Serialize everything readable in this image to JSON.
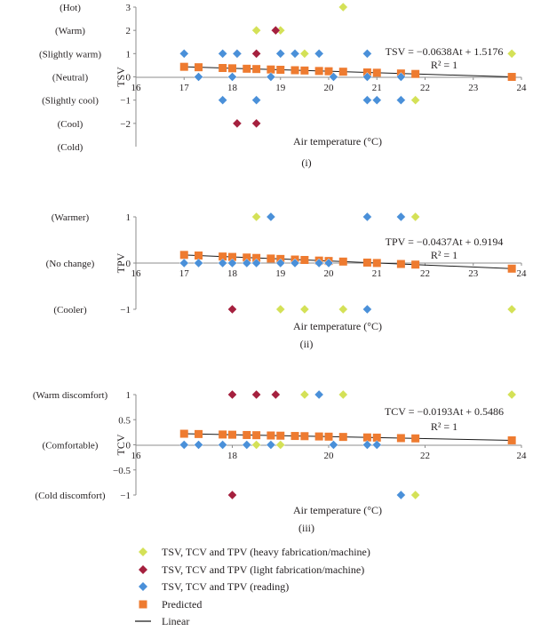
{
  "colors": {
    "heavy": "#d4e157",
    "light": "#a5203e",
    "reading": "#4a90d9",
    "predicted": "#ee7b30",
    "linear": "#1a1a1a",
    "axis": "#8c8c8c",
    "text": "#231f20"
  },
  "legend": [
    {
      "key": "heavy",
      "marker": "diamond",
      "label": "TSV, TCV and TPV (heavy fabrication/machine)"
    },
    {
      "key": "light",
      "marker": "diamond",
      "label": "TSV, TCV and TPV (light fabrication/machine)"
    },
    {
      "key": "reading",
      "marker": "diamond",
      "label": "TSV, TCV and TPV (reading)"
    },
    {
      "key": "predicted",
      "marker": "square",
      "label": "Predicted"
    },
    {
      "key": "linear",
      "marker": "line",
      "label": "Linear"
    }
  ],
  "chart_data": [
    {
      "id": "i",
      "type": "scatter",
      "caption": "(i)",
      "xlabel": "Air temperature (°C)",
      "ylabel": "TSV",
      "xlim": [
        16,
        24
      ],
      "ylim": [
        -3,
        3
      ],
      "xticks": [
        16,
        17,
        18,
        19,
        20,
        21,
        22,
        23,
        24
      ],
      "yticks": [
        3,
        2,
        1,
        0,
        -1,
        -2
      ],
      "category_labels": [
        {
          "y": 3,
          "text": "(Hot)"
        },
        {
          "y": 2,
          "text": "(Warm)"
        },
        {
          "y": 1,
          "text": "(Slightly warm)"
        },
        {
          "y": 0,
          "text": "(Neutral)"
        },
        {
          "y": -1,
          "text": "(Slightly cool)"
        },
        {
          "y": -2,
          "text": "(Cool)"
        },
        {
          "y": -3,
          "text": "(Cold)"
        }
      ],
      "equation": "TSV = −0.0638At + 1.5176",
      "r2": "R² = 1",
      "series": [
        {
          "name": "TSV, TCV and TPV (heavy fabrication/machine)",
          "key": "heavy",
          "points": [
            [
              20.3,
              3
            ],
            [
              18.5,
              2
            ],
            [
              19.0,
              2
            ],
            [
              19.5,
              1
            ],
            [
              23.8,
              1
            ],
            [
              21.8,
              -1
            ]
          ]
        },
        {
          "name": "TSV, TCV and TPV (light fabrication/machine)",
          "key": "light",
          "points": [
            [
              18.9,
              2
            ],
            [
              18.1,
              1
            ],
            [
              18.5,
              1
            ],
            [
              18.1,
              -2
            ],
            [
              18.5,
              -2
            ]
          ]
        },
        {
          "name": "TSV, TCV and TPV (reading)",
          "key": "reading",
          "points": [
            [
              17.0,
              1
            ],
            [
              17.8,
              1
            ],
            [
              18.1,
              1
            ],
            [
              19.0,
              1
            ],
            [
              19.3,
              1
            ],
            [
              19.8,
              1
            ],
            [
              20.8,
              1
            ],
            [
              17.3,
              0
            ],
            [
              18.0,
              0
            ],
            [
              18.8,
              0
            ],
            [
              20.1,
              0
            ],
            [
              20.8,
              0
            ],
            [
              21.5,
              0
            ],
            [
              17.8,
              -1
            ],
            [
              18.5,
              -1
            ],
            [
              20.8,
              -1
            ],
            [
              21.0,
              -1
            ],
            [
              21.5,
              -1
            ]
          ]
        },
        {
          "name": "Predicted",
          "key": "predicted",
          "x": [
            17.0,
            17.3,
            17.8,
            18.0,
            18.3,
            18.5,
            18.8,
            19.0,
            19.3,
            19.5,
            19.8,
            20.0,
            20.3,
            20.8,
            21.0,
            21.5,
            21.8,
            23.8
          ]
        },
        {
          "name": "Linear",
          "key": "linear",
          "slope": -0.0638,
          "intercept": 1.5176
        }
      ]
    },
    {
      "id": "ii",
      "type": "scatter",
      "caption": "(ii)",
      "xlabel": "Air temperature (°C)",
      "ylabel": "TPV",
      "xlim": [
        16,
        24
      ],
      "ylim": [
        -1,
        1
      ],
      "xticks": [
        16,
        17,
        18,
        19,
        20,
        21,
        22,
        23,
        24
      ],
      "yticks": [
        1,
        0,
        -1
      ],
      "category_labels": [
        {
          "y": 1,
          "text": "(Warmer)"
        },
        {
          "y": 0,
          "text": "(No change)"
        },
        {
          "y": -1,
          "text": "(Cooler)"
        }
      ],
      "equation": "TPV = −0.0437At + 0.9194",
      "r2": "R² = 1",
      "series": [
        {
          "name": "TSV, TCV and TPV (heavy fabrication/machine)",
          "key": "heavy",
          "points": [
            [
              18.5,
              1
            ],
            [
              21.8,
              1
            ],
            [
              19.0,
              -1
            ],
            [
              19.5,
              -1
            ],
            [
              20.3,
              -1
            ],
            [
              23.8,
              -1
            ]
          ]
        },
        {
          "name": "TSV, TCV and TPV (light fabrication/machine)",
          "key": "light",
          "points": [
            [
              18.0,
              -1
            ]
          ]
        },
        {
          "name": "TSV, TCV and TPV (reading)",
          "key": "reading",
          "points": [
            [
              18.8,
              1
            ],
            [
              20.8,
              1
            ],
            [
              21.5,
              1
            ],
            [
              17.0,
              0
            ],
            [
              17.3,
              0
            ],
            [
              17.8,
              0
            ],
            [
              18.0,
              0
            ],
            [
              18.3,
              0
            ],
            [
              18.5,
              0
            ],
            [
              19.0,
              0
            ],
            [
              19.3,
              0
            ],
            [
              19.8,
              0
            ],
            [
              20.0,
              0
            ],
            [
              20.8,
              -1
            ]
          ]
        },
        {
          "name": "Predicted",
          "key": "predicted",
          "x": [
            17.0,
            17.3,
            17.8,
            18.0,
            18.3,
            18.5,
            18.8,
            19.0,
            19.3,
            19.5,
            19.8,
            20.0,
            20.3,
            20.8,
            21.0,
            21.5,
            21.8,
            23.8
          ]
        },
        {
          "name": "Linear",
          "key": "linear",
          "slope": -0.0437,
          "intercept": 0.9194
        }
      ]
    },
    {
      "id": "iii",
      "type": "scatter",
      "caption": "(iii)",
      "xlabel": "Air temperature (°C)",
      "ylabel": "TCV",
      "xlim": [
        16,
        24
      ],
      "ylim": [
        -1,
        1
      ],
      "xticks": [
        16,
        18,
        20,
        22,
        24
      ],
      "yticks": [
        1,
        0.5,
        0,
        -0.5,
        -1
      ],
      "category_labels": [
        {
          "y": 1,
          "text": "(Warm discomfort)"
        },
        {
          "y": 0,
          "text": "(Comfortable)"
        },
        {
          "y": -1,
          "text": "(Cold discomfort)"
        }
      ],
      "equation": "TCV = −0.0193At + 0.5486",
      "r2": "R² = 1",
      "series": [
        {
          "name": "TSV, TCV and TPV (heavy fabrication/machine)",
          "key": "heavy",
          "points": [
            [
              19.5,
              1
            ],
            [
              20.3,
              1
            ],
            [
              23.8,
              1
            ],
            [
              18.5,
              0
            ],
            [
              19.0,
              0
            ],
            [
              21.8,
              -1
            ]
          ]
        },
        {
          "name": "TSV, TCV and TPV (light fabrication/machine)",
          "key": "light",
          "points": [
            [
              18.0,
              1
            ],
            [
              18.5,
              1
            ],
            [
              18.9,
              1
            ],
            [
              18.0,
              -1
            ]
          ]
        },
        {
          "name": "TSV, TCV and TPV (reading)",
          "key": "reading",
          "points": [
            [
              19.8,
              1
            ],
            [
              17.0,
              0
            ],
            [
              17.3,
              0
            ],
            [
              17.8,
              0
            ],
            [
              18.3,
              0
            ],
            [
              18.8,
              0
            ],
            [
              20.1,
              0
            ],
            [
              20.8,
              0
            ],
            [
              21.0,
              0
            ],
            [
              21.5,
              -1
            ]
          ]
        },
        {
          "name": "Predicted",
          "key": "predicted",
          "x": [
            17.0,
            17.3,
            17.8,
            18.0,
            18.3,
            18.5,
            18.8,
            19.0,
            19.3,
            19.5,
            19.8,
            20.0,
            20.3,
            20.8,
            21.0,
            21.5,
            21.8,
            23.8
          ]
        },
        {
          "name": "Linear",
          "key": "linear",
          "slope": -0.0193,
          "intercept": 0.5486
        }
      ]
    }
  ]
}
